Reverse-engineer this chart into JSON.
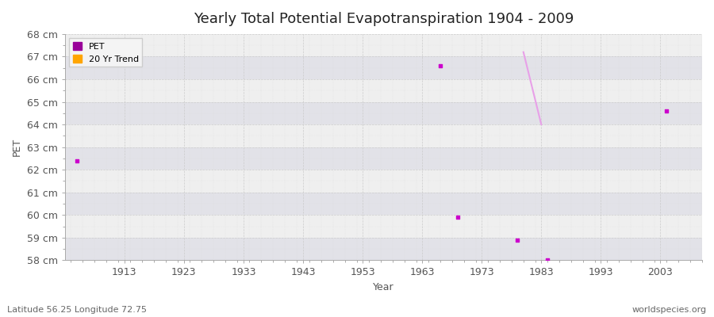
{
  "title": "Yearly Total Potential Evapotranspiration 1904 - 2009",
  "xlabel": "Year",
  "ylabel": "PET",
  "subtitle_lat": "Latitude 56.25 Longitude 72.75",
  "watermark": "worldspecies.org",
  "ylim": [
    58,
    68
  ],
  "xlim": [
    1903,
    2010
  ],
  "ytick_labels": [
    "58 cm",
    "59 cm",
    "60 cm",
    "61 cm",
    "62 cm",
    "63 cm",
    "64 cm",
    "65 cm",
    "66 cm",
    "67 cm",
    "68 cm"
  ],
  "ytick_values": [
    58,
    59,
    60,
    61,
    62,
    63,
    64,
    65,
    66,
    67,
    68
  ],
  "xtick_values": [
    1913,
    1923,
    1933,
    1943,
    1953,
    1963,
    1973,
    1983,
    1993,
    2003
  ],
  "pet_data": [
    {
      "year": 1905,
      "value": 62.4
    },
    {
      "year": 1966,
      "value": 66.6
    },
    {
      "year": 1969,
      "value": 59.9
    },
    {
      "year": 1979,
      "value": 58.9
    },
    {
      "year": 1984,
      "value": 58.0
    },
    {
      "year": 2004,
      "value": 64.6
    }
  ],
  "trend_line": [
    {
      "year": 1980,
      "value": 67.2
    },
    {
      "year": 1983,
      "value": 64.0
    }
  ],
  "pet_color": "#CC00CC",
  "trend_color": "#E8A0E8",
  "band_color_light": "#EFEFEF",
  "band_color_dark": "#E2E2E8",
  "legend_pet_color": "#990099",
  "legend_trend_color": "#FFA500",
  "fig_background": "#FFFFFF",
  "title_fontsize": 13,
  "axis_fontsize": 9,
  "tick_fontsize": 9
}
